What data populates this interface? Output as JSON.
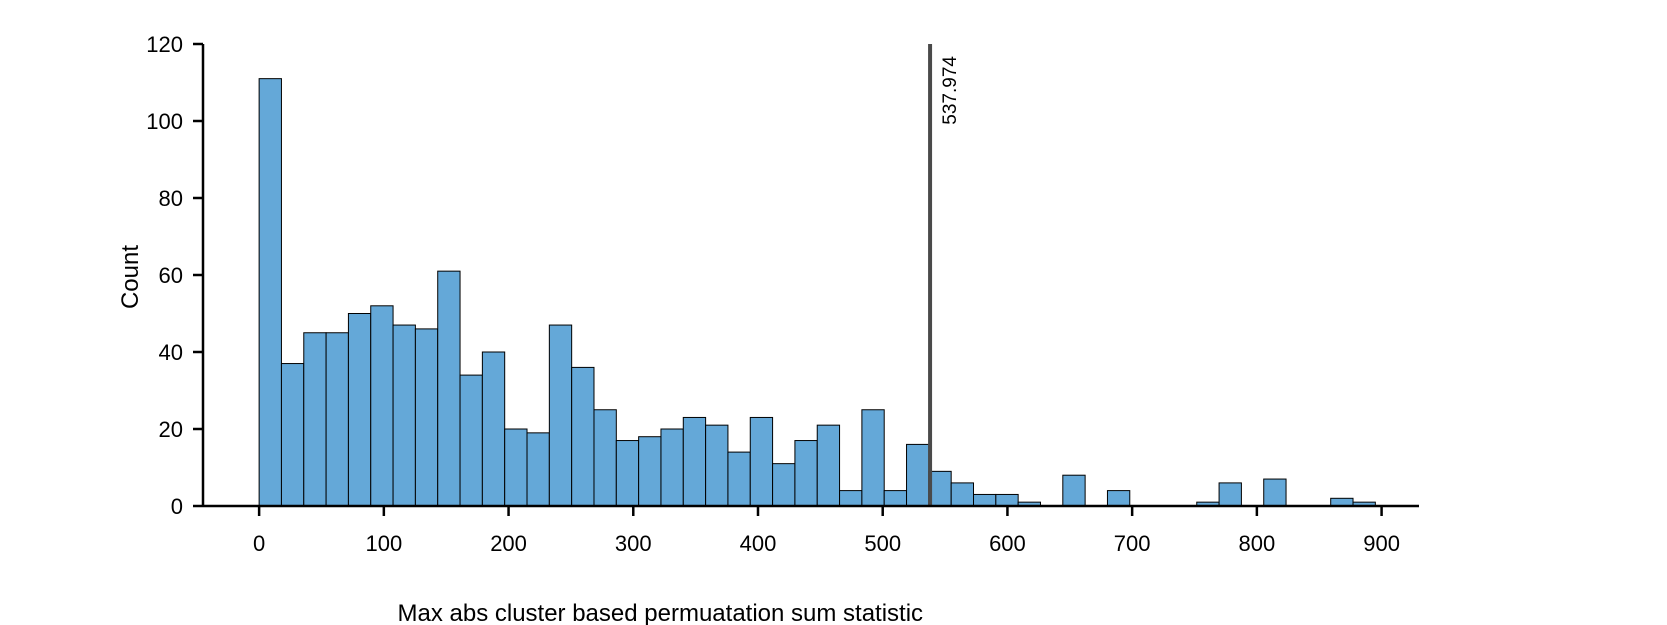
{
  "chart_data": {
    "type": "bar",
    "title": "",
    "xlabel": "Max abs cluster based permuatation sum statistic",
    "ylabel": "Count",
    "xlim": [
      -45,
      930
    ],
    "ylim": [
      0,
      120
    ],
    "xticks": [
      0,
      100,
      200,
      300,
      400,
      500,
      600,
      700,
      800,
      900
    ],
    "yticks": [
      0,
      20,
      40,
      60,
      80,
      100,
      120
    ],
    "bin_width": 17.9,
    "bin_start": 0,
    "counts": [
      111,
      37,
      45,
      45,
      50,
      52,
      47,
      46,
      61,
      34,
      40,
      20,
      19,
      47,
      36,
      25,
      17,
      18,
      20,
      23,
      21,
      14,
      23,
      11,
      17,
      21,
      4,
      25,
      4,
      16,
      9,
      6,
      3,
      3,
      1,
      0,
      8,
      0,
      4,
      0,
      0,
      0,
      1,
      6,
      0,
      7,
      0,
      0,
      2,
      1
    ],
    "bar_color": "#64a8d8",
    "grid": false,
    "vline": {
      "x": 537.974,
      "label": "537.974",
      "color": "#4a4a4a"
    }
  }
}
